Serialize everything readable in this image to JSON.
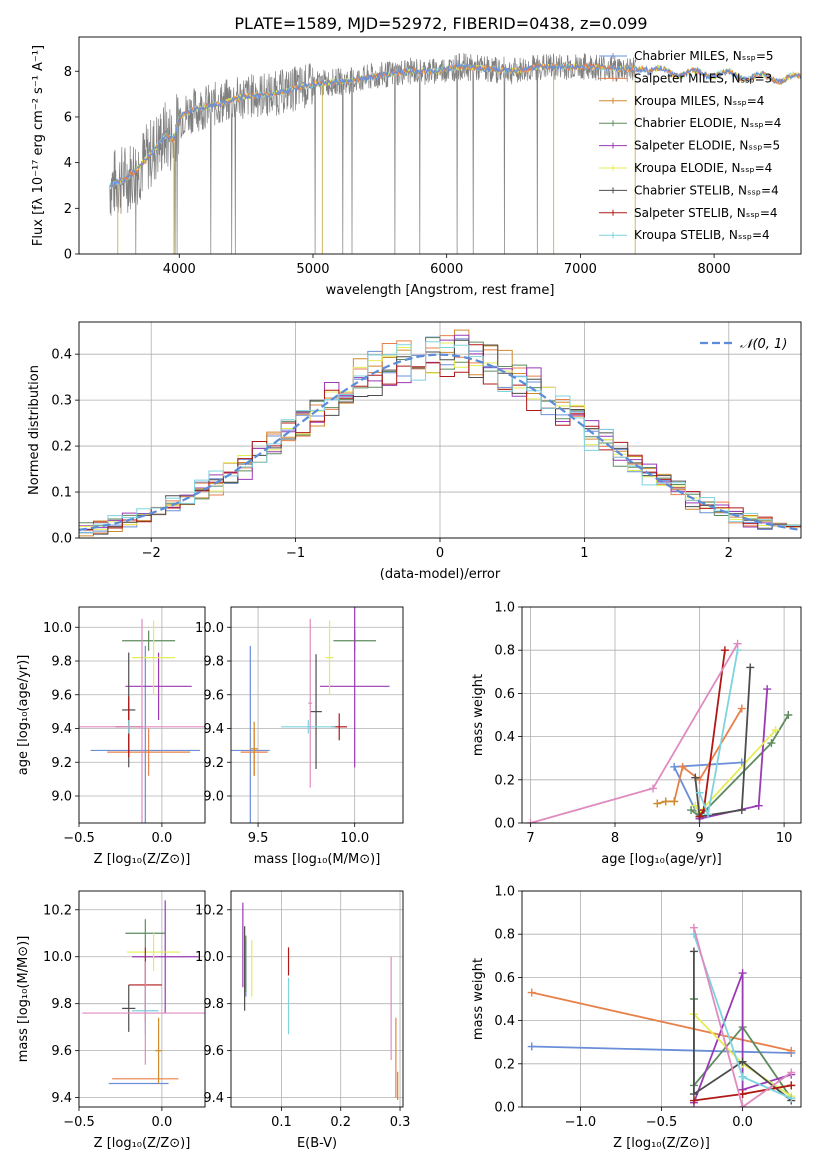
{
  "figure_title": "PLATE=1589, MJD=52972, FIBERID=0438, z=0.099",
  "colors": {
    "Chabrier MILES": "#6a8fd8",
    "Salpeter MILES": "#e8804a",
    "Kroupa MILES": "#d08a2e",
    "Chabrier ELODIE": "#5e8c5e",
    "Salpeter ELODIE": "#9a3ab5",
    "Kroupa ELODIE": "#e4ec56",
    "Chabrier STELIB": "#4d4d4d",
    "Salpeter STELIB": "#b01818",
    "Kroupa STELIB": "#7fd3df",
    "data": "#808080",
    "gauss": "#5b8bd9",
    "pink": "#e08bc0",
    "orange": "#e07b1f",
    "lime": "#b6e05a"
  },
  "chart_data": [
    {
      "id": "spectrum",
      "type": "line",
      "xlabel": "wavelength [Angstrom, rest frame]",
      "ylabel": "Flux [fλ 10⁻¹⁷ erg cm⁻² s⁻¹ A⁻¹]",
      "xlim": [
        3250,
        8650
      ],
      "ylim": [
        0,
        9.5
      ],
      "xticks": [
        "4000",
        "5000",
        "6000",
        "7000",
        "8000"
      ],
      "yticks": [
        "0",
        "2",
        "4",
        "6",
        "8"
      ],
      "grid": false,
      "legend": "top-right",
      "legend_entries": [
        "Chabrier MILES, Nₛₛₚ=5",
        "Salpeter MILES, Nₛₛₚ=3",
        "Kroupa MILES, Nₛₛₚ=4",
        "Chabrier ELODIE, Nₛₛₚ=4",
        "Salpeter ELODIE, Nₛₛₚ=5",
        "Kroupa ELODIE, Nₛₛₚ=4",
        "Chabrier STELIB, Nₛₛₚ=4",
        "Salpeter STELIB, Nₛₛₚ=4",
        "Kroupa STELIB, Nₛₛₚ=4"
      ],
      "continuum": {
        "x": [
          3480,
          3600,
          3700,
          3800,
          3900,
          3960,
          4000,
          4100,
          4300,
          4500,
          4700,
          4900,
          5100,
          5300,
          5500,
          5700,
          5900,
          6100,
          6300,
          6500,
          6700,
          6900,
          7100,
          7300,
          7420,
          7600,
          7800,
          8000,
          8200,
          8400,
          8650
        ],
        "y": [
          3.0,
          3.3,
          3.8,
          4.5,
          5.2,
          5.0,
          6.0,
          6.3,
          6.6,
          6.9,
          7.0,
          7.3,
          7.5,
          7.6,
          7.8,
          8.0,
          8.0,
          8.2,
          8.1,
          8.0,
          8.2,
          8.2,
          8.2,
          8.1,
          8.1,
          8.0,
          7.9,
          7.9,
          7.8,
          7.7,
          7.7
        ]
      },
      "noise_end": 7420
    },
    {
      "id": "residuals",
      "type": "histogram",
      "xlabel": "(data-model)/error",
      "ylabel": "Normed distribution",
      "xlim": [
        -2.5,
        2.5
      ],
      "ylim": [
        0,
        0.47
      ],
      "xticks": [
        "−2",
        "−1",
        "0",
        "1",
        "2"
      ],
      "yticks": [
        "0.0",
        "0.1",
        "0.2",
        "0.3",
        "0.4"
      ],
      "grid": true,
      "legend": "top-right",
      "legend_entries": [
        "𝒩(0, 1)"
      ],
      "bins": {
        "start": -2.5,
        "width": 0.1,
        "count": 50
      }
    },
    {
      "id": "age-vs-Z",
      "type": "scatter",
      "xlabel": "Z [log₁₀(Z/Z⊙)]",
      "ylabel": "age  [log₁₀(age/yr)]",
      "xlim": [
        -0.5,
        0.26
      ],
      "ylim": [
        8.84,
        10.12
      ],
      "xticks": [
        "−0.5",
        "0.0"
      ],
      "yticks": [
        "9.0",
        "9.2",
        "9.4",
        "9.6",
        "9.8",
        "10.0"
      ],
      "grid": true,
      "points": [
        {
          "series": "Chabrier MILES",
          "x": -0.1,
          "xerr": 0.33,
          "y": 9.27,
          "yerr": 0.62
        },
        {
          "series": "Salpeter MILES",
          "x": -0.08,
          "xerr": 0.25,
          "y": 9.26,
          "yerr": 0.14
        },
        {
          "series": "Kroupa MILES",
          "x": -0.2,
          "xerr": 0.04,
          "y": 9.41,
          "yerr": 0.14
        },
        {
          "series": "Chabrier ELODIE",
          "x": -0.08,
          "xerr": 0.16,
          "y": 9.92,
          "yerr": 0.06
        },
        {
          "series": "Salpeter ELODIE",
          "x": -0.02,
          "xerr": 0.2,
          "y": 9.65,
          "yerr": 0.2
        },
        {
          "series": "Kroupa ELODIE",
          "x": -0.05,
          "xerr": 0.13,
          "y": 9.82,
          "yerr": 0.22
        },
        {
          "series": "Chabrier STELIB",
          "x": -0.2,
          "xerr": 0.04,
          "y": 9.51,
          "yerr": 0.34
        },
        {
          "series": "Salpeter STELIB",
          "x": -0.2,
          "xerr": 0.08,
          "y": 9.41,
          "yerr": 0.18
        },
        {
          "series": "Kroupa STELIB",
          "x": -0.2,
          "xerr": 0.04,
          "y": 9.41,
          "yerr": 0.04
        },
        {
          "series": "pink",
          "x": -0.12,
          "xerr": 0.38,
          "y": 9.41,
          "yerr": 0.64
        }
      ]
    },
    {
      "id": "age-vs-mass",
      "type": "scatter",
      "xlabel": "mass [log₁₀(M/M⊙)]",
      "ylabel": "",
      "xlim": [
        9.36,
        10.25
      ],
      "ylim": [
        8.84,
        10.12
      ],
      "xticks": [
        "9.5",
        "10.0"
      ],
      "yticks": [
        "9.0",
        "9.2",
        "9.4",
        "9.6",
        "9.8",
        "10.0"
      ],
      "grid": true,
      "points": [
        {
          "series": "Chabrier MILES",
          "x": 9.46,
          "xerr": 0.1,
          "y": 9.27,
          "yerr": 0.62
        },
        {
          "series": "Salpeter MILES",
          "x": 9.48,
          "xerr": 0.07,
          "y": 9.26,
          "yerr": 0.14
        },
        {
          "series": "Kroupa MILES",
          "x": 9.48,
          "xerr": 0.02,
          "y": 9.28,
          "yerr": 0.16
        },
        {
          "series": "Chabrier ELODIE",
          "x": 10.0,
          "xerr": 0.11,
          "y": 9.92,
          "yerr": 0.06
        },
        {
          "series": "Salpeter ELODIE",
          "x": 10.0,
          "xerr": 0.18,
          "y": 9.65,
          "yerr": 0.48
        },
        {
          "series": "Kroupa ELODIE",
          "x": 9.87,
          "xerr": 0.02,
          "y": 9.82,
          "yerr": 0.22
        },
        {
          "series": "Chabrier STELIB",
          "x": 9.8,
          "xerr": 0.03,
          "y": 9.5,
          "yerr": 0.34
        },
        {
          "series": "Salpeter STELIB",
          "x": 9.92,
          "xerr": 0.04,
          "y": 9.41,
          "yerr": 0.08
        },
        {
          "series": "Kroupa STELIB",
          "x": 9.76,
          "xerr": 0.14,
          "y": 9.41,
          "yerr": 0.04
        },
        {
          "series": "pink",
          "x": 9.77,
          "xerr": 0.01,
          "y": 9.55,
          "yerr": 0.5
        }
      ]
    },
    {
      "id": "weight-vs-age",
      "type": "line",
      "xlabel": "age  [log₁₀(age/yr)]",
      "ylabel": "mass weight",
      "xlim": [
        6.9,
        10.2
      ],
      "ylim": [
        0,
        1.0
      ],
      "xticks": [
        "7",
        "8",
        "9",
        "10"
      ],
      "yticks": [
        "0.0",
        "0.2",
        "0.4",
        "0.6",
        "0.8",
        "1.0"
      ],
      "grid": true,
      "series": [
        {
          "name": "Chabrier MILES",
          "x": [
            9.0,
            9.0,
            8.7,
            9.5
          ],
          "y": [
            0.05,
            0.02,
            0.26,
            0.28
          ]
        },
        {
          "name": "Salpeter MILES",
          "x": [
            8.7,
            8.8,
            9.0,
            9.5
          ],
          "y": [
            0.1,
            0.26,
            0.2,
            0.53
          ]
        },
        {
          "name": "Kroupa MILES",
          "x": [
            8.5,
            8.6,
            8.7
          ],
          "y": [
            0.09,
            0.1,
            0.1
          ]
        },
        {
          "name": "Chabrier ELODIE",
          "x": [
            8.9,
            9.0,
            9.85,
            10.05
          ],
          "y": [
            0.06,
            0.03,
            0.37,
            0.5
          ]
        },
        {
          "name": "Salpeter ELODIE",
          "x": [
            9.0,
            9.7,
            9.8
          ],
          "y": [
            0.02,
            0.08,
            0.62
          ]
        },
        {
          "name": "Kroupa ELODIE",
          "x": [
            8.95,
            9.0,
            9.9
          ],
          "y": [
            0.08,
            0.05,
            0.43
          ]
        },
        {
          "name": "Chabrier STELIB",
          "x": [
            8.95,
            9.0,
            9.5,
            9.6
          ],
          "y": [
            0.21,
            0.03,
            0.06,
            0.72
          ]
        },
        {
          "name": "Salpeter STELIB",
          "x": [
            9.0,
            9.05,
            9.3
          ],
          "y": [
            0.03,
            0.06,
            0.8
          ]
        },
        {
          "name": "Kroupa STELIB",
          "x": [
            9.0,
            9.1,
            9.45
          ],
          "y": [
            0.14,
            0.04,
            0.8
          ]
        },
        {
          "name": "pink",
          "x": [
            7.0,
            8.45,
            9.45
          ],
          "y": [
            0.0,
            0.16,
            0.83
          ]
        }
      ]
    },
    {
      "id": "mass-vs-Z",
      "type": "scatter",
      "xlabel": "Z [log₁₀(Z/Z⊙)]",
      "ylabel": "mass [log₁₀(M/M⊙)]",
      "xlim": [
        -0.5,
        0.26
      ],
      "ylim": [
        9.36,
        10.28
      ],
      "xticks": [
        "−0.5",
        "0.0"
      ],
      "yticks": [
        "9.4",
        "9.6",
        "9.8",
        "10.0",
        "10.2"
      ],
      "grid": true,
      "points": [
        {
          "series": "Chabrier MILES",
          "x": -0.14,
          "xerr": 0.18,
          "y": 9.46,
          "yerr": 0.0
        },
        {
          "series": "Salpeter MILES",
          "x": -0.1,
          "xerr": 0.2,
          "y": 9.48,
          "yerr": 0.0
        },
        {
          "series": "Kroupa MILES",
          "x": -0.02,
          "xerr": 0.02,
          "y": 9.6,
          "yerr": 0.14
        },
        {
          "series": "Chabrier ELODIE",
          "x": -0.1,
          "xerr": 0.12,
          "y": 10.1,
          "yerr": 0.06
        },
        {
          "series": "Salpeter ELODIE",
          "x": 0.02,
          "xerr": 0.2,
          "y": 10.0,
          "yerr": 0.24
        },
        {
          "series": "Kroupa ELODIE",
          "x": -0.05,
          "xerr": 0.16,
          "y": 10.02,
          "yerr": 0.08
        },
        {
          "series": "Chabrier STELIB",
          "x": -0.2,
          "xerr": 0.04,
          "y": 9.78,
          "yerr": 0.1
        },
        {
          "series": "Salpeter STELIB",
          "x": -0.1,
          "xerr": 0.1,
          "y": 9.88,
          "yerr": 0.16
        },
        {
          "series": "Kroupa STELIB",
          "x": -0.1,
          "xerr": 0.08,
          "y": 9.77,
          "yerr": 0.1
        },
        {
          "series": "pink",
          "x": -0.1,
          "xerr": 0.38,
          "y": 9.76,
          "yerr": 0.22
        }
      ]
    },
    {
      "id": "mass-vs-EBV",
      "type": "scatter",
      "xlabel": "E(B-V)",
      "ylabel": "",
      "xlim": [
        0.015,
        0.305
      ],
      "ylim": [
        9.36,
        10.28
      ],
      "xticks": [
        "0.1",
        "0.2",
        "0.3"
      ],
      "yticks": [
        "9.4",
        "9.6",
        "9.8",
        "10.0",
        "10.2"
      ],
      "grid": true,
      "points": [
        {
          "series": "Chabrier MILES",
          "x": 0.04,
          "xerr": 0.0,
          "y": 9.95,
          "yerr": 0.12
        },
        {
          "series": "Salpeter MILES",
          "x": 0.293,
          "xerr": 0.0,
          "y": 9.57,
          "yerr": 0.17
        },
        {
          "series": "Kroupa MILES",
          "x": 0.296,
          "xerr": 0.0,
          "y": 9.45,
          "yerr": 0.06
        },
        {
          "series": "Chabrier ELODIE",
          "x": 0.04,
          "xerr": 0.0,
          "y": 9.97,
          "yerr": 0.12
        },
        {
          "series": "Salpeter ELODIE",
          "x": 0.035,
          "xerr": 0.0,
          "y": 10.05,
          "yerr": 0.18
        },
        {
          "series": "Kroupa ELODIE",
          "x": 0.05,
          "xerr": 0.0,
          "y": 9.95,
          "yerr": 0.12
        },
        {
          "series": "Chabrier STELIB",
          "x": 0.038,
          "xerr": 0.0,
          "y": 9.95,
          "yerr": 0.18
        },
        {
          "series": "Salpeter STELIB",
          "x": 0.112,
          "xerr": 0.0,
          "y": 9.98,
          "yerr": 0.06
        },
        {
          "series": "Kroupa STELIB",
          "x": 0.112,
          "xerr": 0.0,
          "y": 9.79,
          "yerr": 0.12
        },
        {
          "series": "pink",
          "x": 0.285,
          "xerr": 0.0,
          "y": 9.78,
          "yerr": 0.22
        }
      ]
    },
    {
      "id": "weight-vs-Z",
      "type": "line",
      "xlabel": "Z [log₁₀(Z/Z⊙)]",
      "ylabel": "mass weight",
      "xlim": [
        -1.36,
        0.36
      ],
      "ylim": [
        0,
        1.0
      ],
      "xticks": [
        "−1.0",
        "−0.5",
        "0.0"
      ],
      "yticks": [
        "0.0",
        "0.2",
        "0.4",
        "0.6",
        "0.8",
        "1.0"
      ],
      "grid": true,
      "series": [
        {
          "name": "Chabrier MILES",
          "x": [
            -1.3,
            0.3
          ],
          "y": [
            0.28,
            0.25
          ]
        },
        {
          "name": "Salpeter MILES",
          "x": [
            -1.3,
            0.3
          ],
          "y": [
            0.53,
            0.26
          ]
        },
        {
          "name": "Kroupa MILES",
          "x": [
            0.0,
            0.3
          ],
          "y": [
            0.06,
            0.1
          ]
        },
        {
          "name": "Chabrier ELODIE",
          "x": [
            -0.3,
            -0.3,
            0.0,
            0.3
          ],
          "y": [
            0.5,
            0.1,
            0.37,
            0.04
          ]
        },
        {
          "name": "Salpeter ELODIE",
          "x": [
            -0.3,
            0.0,
            0.0,
            0.3
          ],
          "y": [
            0.02,
            0.62,
            0.08,
            0.15
          ]
        },
        {
          "name": "Kroupa ELODIE",
          "x": [
            -0.3,
            0.0,
            0.3
          ],
          "y": [
            0.43,
            0.2,
            0.05
          ]
        },
        {
          "name": "Chabrier STELIB",
          "x": [
            -0.3,
            -0.3,
            0.0,
            0.3
          ],
          "y": [
            0.72,
            0.06,
            0.21,
            0.03
          ]
        },
        {
          "name": "Salpeter STELIB",
          "x": [
            -0.3,
            0.0,
            0.3
          ],
          "y": [
            0.03,
            0.06,
            0.1
          ]
        },
        {
          "name": "Kroupa STELIB",
          "x": [
            -0.3,
            0.0,
            0.3
          ],
          "y": [
            0.8,
            0.14,
            0.04
          ]
        },
        {
          "name": "pink",
          "x": [
            -0.3,
            0.0,
            0.3
          ],
          "y": [
            0.83,
            0.0,
            0.16
          ]
        }
      ]
    }
  ]
}
